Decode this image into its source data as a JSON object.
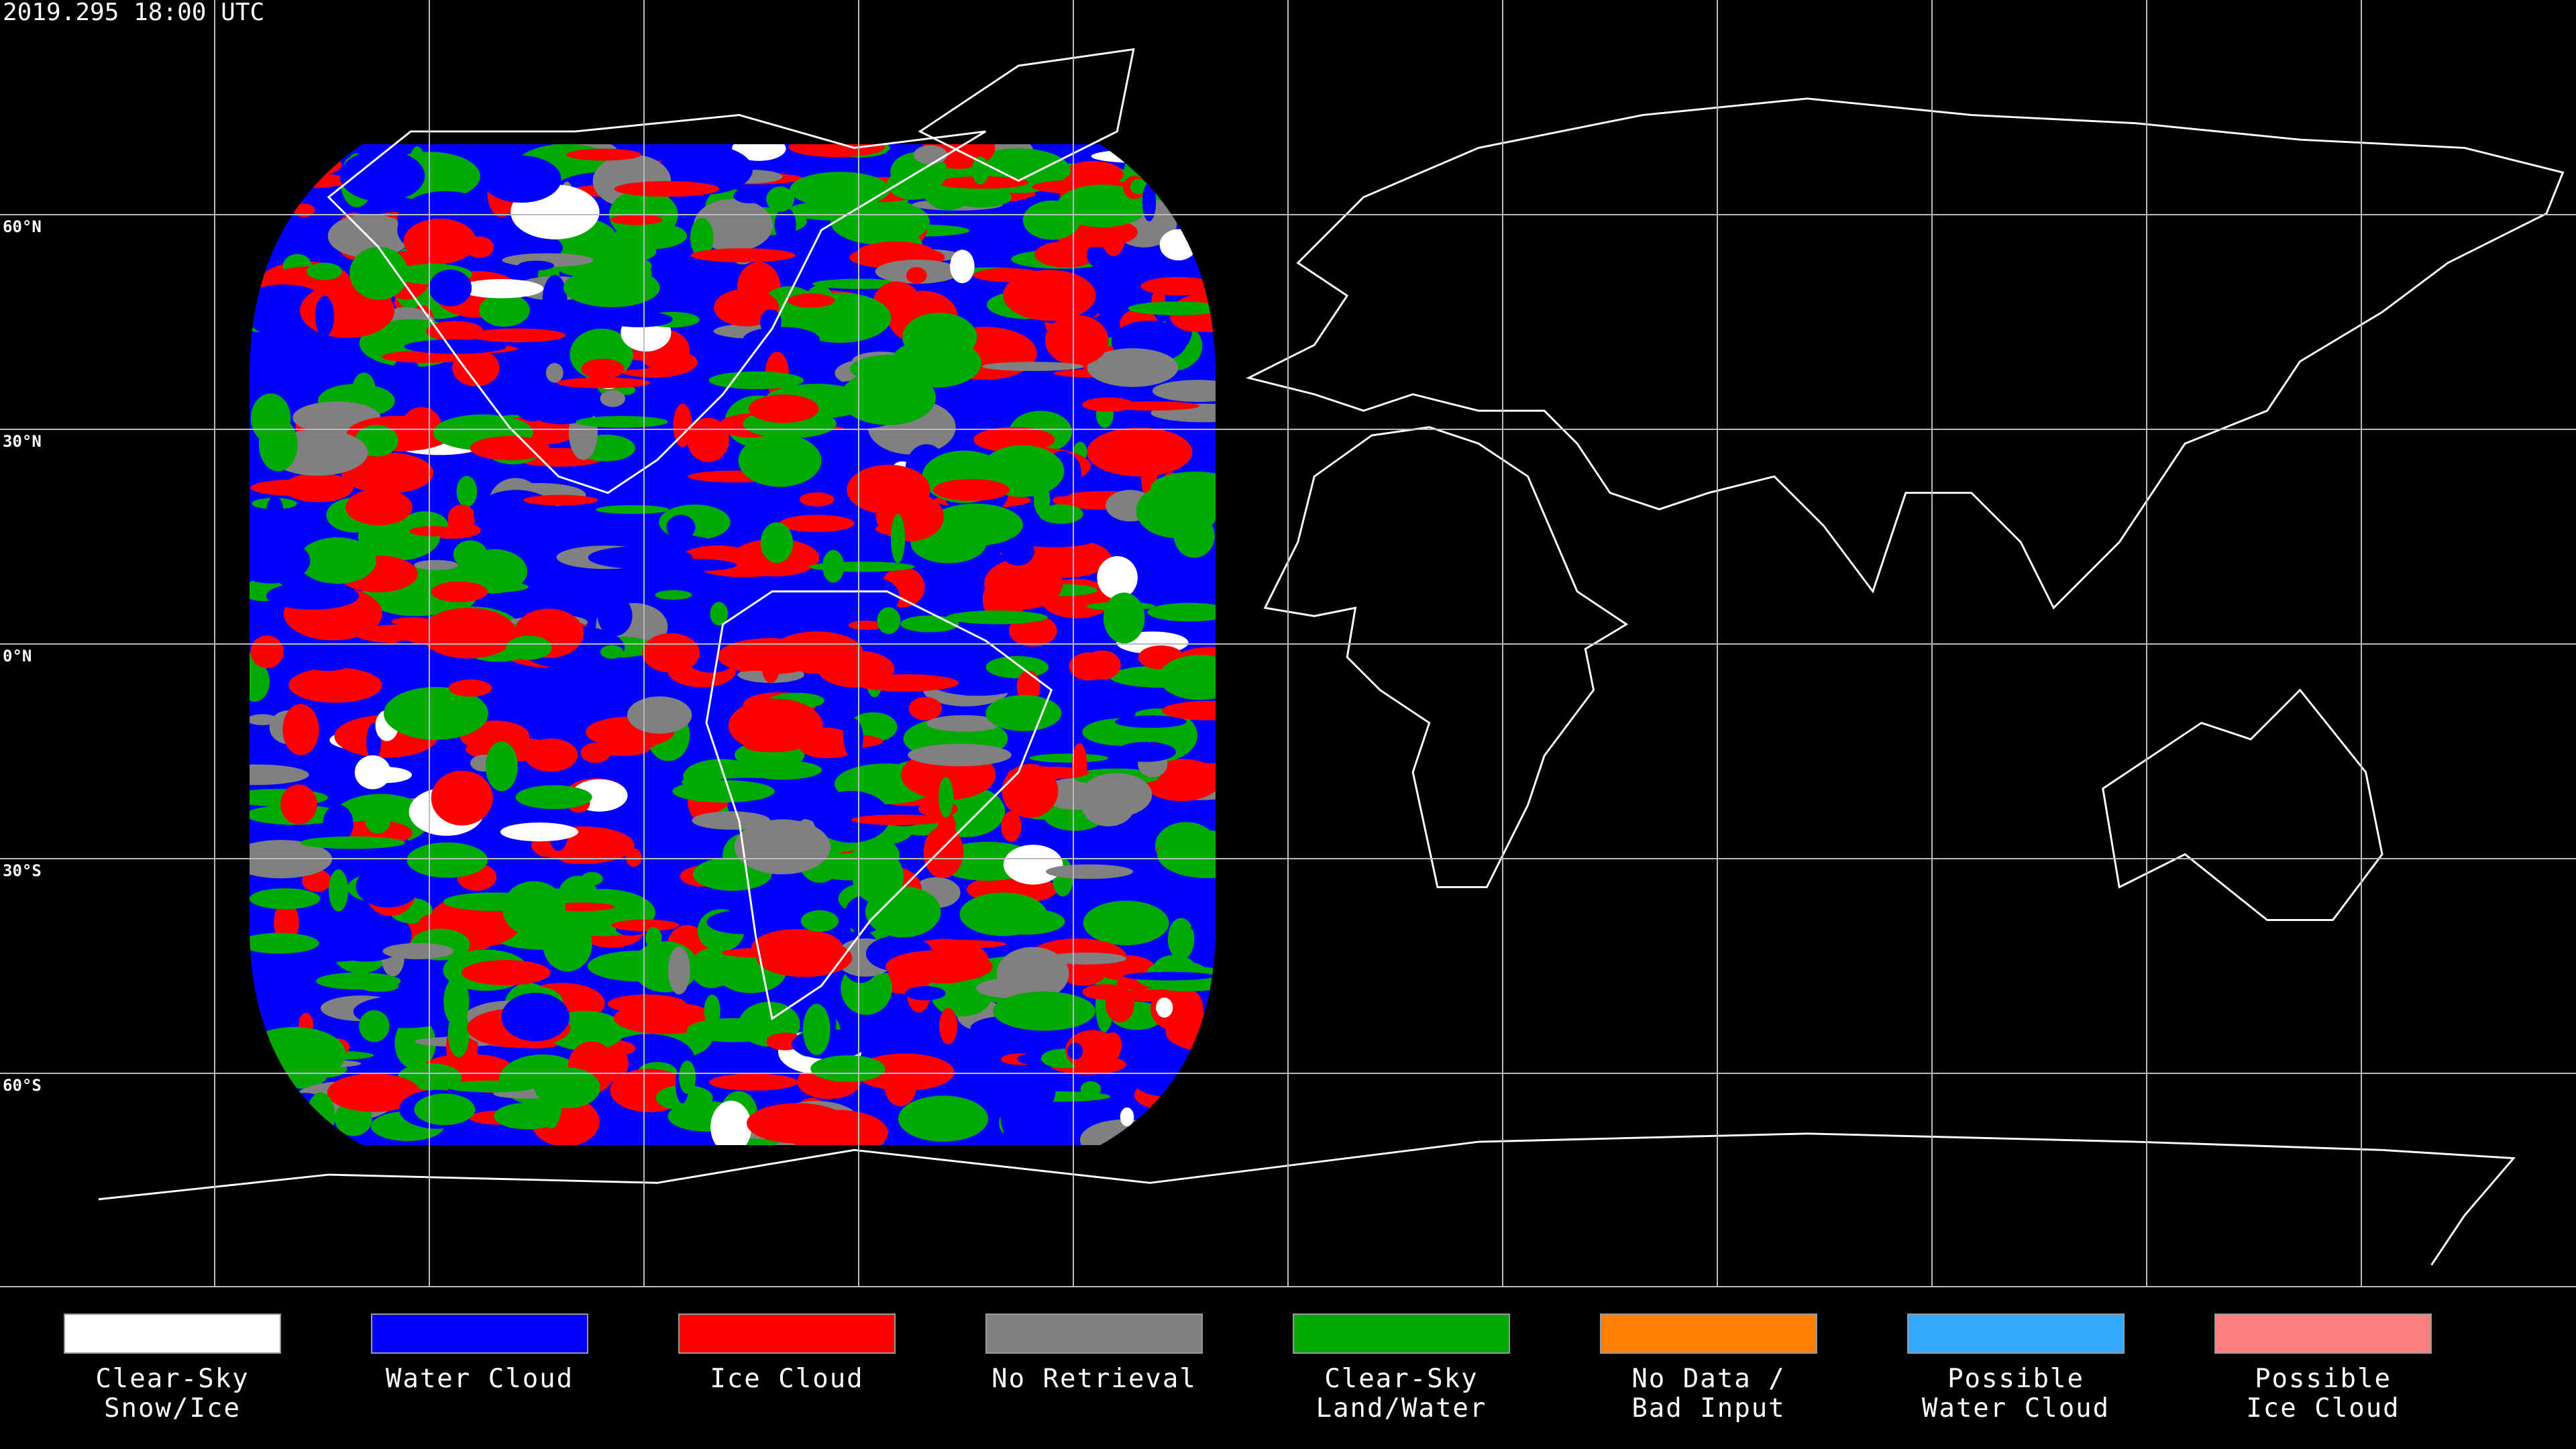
{
  "map": {
    "timestamp": "2019.295 18:00 UTC",
    "latitude_labels": [
      "60°N",
      "30°N",
      "0°N",
      "30°S",
      "60°S"
    ]
  },
  "legend": [
    {
      "lines": [
        "Clear-Sky",
        "Snow/Ice"
      ],
      "color": "#ffffff"
    },
    {
      "lines": [
        "Water Cloud"
      ],
      "color": "#0000ff"
    },
    {
      "lines": [
        "Ice Cloud"
      ],
      "color": "#ff0000"
    },
    {
      "lines": [
        "No Retrieval"
      ],
      "color": "#808080"
    },
    {
      "lines": [
        "Clear-Sky",
        "Land/Water"
      ],
      "color": "#00aa00"
    },
    {
      "lines": [
        "No Data /",
        "Bad Input"
      ],
      "color": "#ff8000"
    },
    {
      "lines": [
        "Possible",
        "Water Cloud"
      ],
      "color": "#33aaff"
    },
    {
      "lines": [
        "Possible",
        "Ice Cloud"
      ],
      "color": "#ff8080"
    }
  ]
}
